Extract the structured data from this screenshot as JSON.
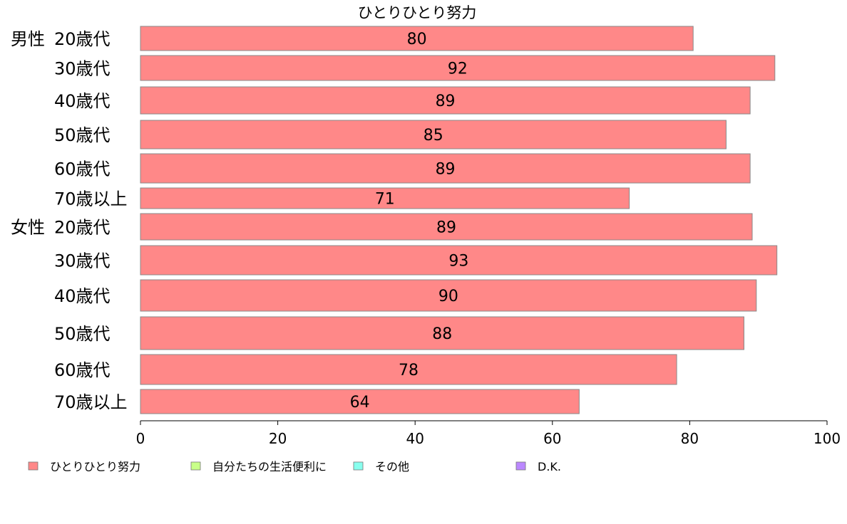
{
  "chart_data": {
    "type": "bar",
    "orientation": "horizontal",
    "title": "ひとりひとり努力",
    "xlabel": "",
    "ylabel": "",
    "xlim": [
      0,
      100
    ],
    "x_ticks": [
      "0",
      "20",
      "40",
      "60",
      "80",
      "100"
    ],
    "grid": false,
    "legend_position": "bottom",
    "groups": [
      "男性",
      "女性"
    ],
    "categories": [
      "20歳代",
      "30歳代",
      "40歳代",
      "50歳代",
      "60歳代",
      "70歳以上",
      "20歳代",
      "30歳代",
      "40歳代",
      "50歳代",
      "60歳代",
      "70歳以上"
    ],
    "series": [
      {
        "name": "ひとりひとり努力",
        "color": "#ff8888",
        "values": [
          80.5,
          92.4,
          88.8,
          85.3,
          88.8,
          71.2,
          89.1,
          92.7,
          89.7,
          87.9,
          78.1,
          63.9
        ],
        "labels": [
          "80",
          "92",
          "89",
          "85",
          "89",
          "71",
          "89",
          "93",
          "90",
          "88",
          "78",
          "64"
        ]
      },
      {
        "name": "自分たちの生活便利に",
        "color": "#c8ff88"
      },
      {
        "name": "その他",
        "color": "#88ffee"
      },
      {
        "name": "D.K.",
        "color": "#bb88ff"
      }
    ]
  }
}
